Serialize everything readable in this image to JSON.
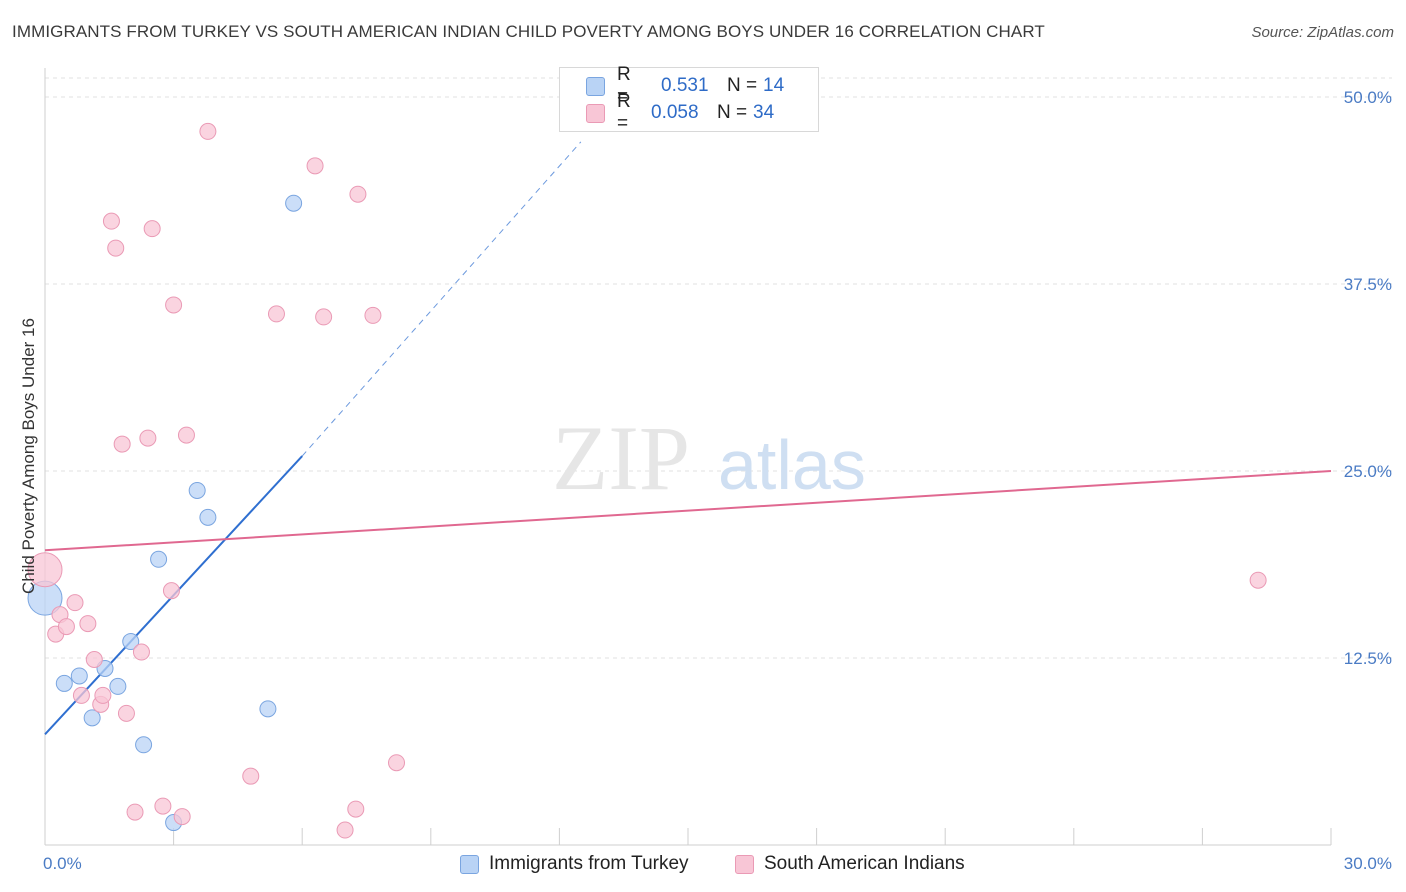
{
  "title": "IMMIGRANTS FROM TURKEY VS SOUTH AMERICAN INDIAN CHILD POVERTY AMONG BOYS UNDER 16 CORRELATION CHART",
  "source": "Source: ZipAtlas.com",
  "watermark": {
    "zip": "ZIP",
    "atlas": "atlas"
  },
  "legend": {
    "turkey": {
      "r_label": "R =",
      "r_value": "0.531",
      "n_label": "N =",
      "n_value": "14"
    },
    "sai": {
      "r_label": "R =",
      "r_value": "0.058",
      "n_label": "N =",
      "n_value": "34"
    }
  },
  "bottom_legend": {
    "turkey": "Immigrants from Turkey",
    "sai": "South American Indians"
  },
  "colors": {
    "turkey_fill": "#b9d3f5",
    "turkey_stroke": "#7aa5e0",
    "turkey_line": "#2f6fd0",
    "sai_fill": "#f8c6d6",
    "sai_stroke": "#ea9ab5",
    "sai_line": "#e06890",
    "tick_text": "#4a7bc4",
    "grid": "#e2e2e2"
  },
  "chart_data": {
    "type": "scatter",
    "title": "IMMIGRANTS FROM TURKEY VS SOUTH AMERICAN INDIAN CHILD POVERTY AMONG BOYS UNDER 16 CORRELATION CHART",
    "xlabel": "",
    "ylabel": "Child Poverty Among Boys Under 16",
    "xlim": [
      0,
      30
    ],
    "ylim": [
      0,
      50
    ],
    "x_tick_labels": [
      "0.0%",
      "30.0%"
    ],
    "y_ticks": [
      12.5,
      25.0,
      37.5,
      50.0
    ],
    "y_tick_labels": [
      "12.5%",
      "25.0%",
      "37.5%",
      "50.0%"
    ],
    "series": [
      {
        "name": "Immigrants from Turkey",
        "color_key": "turkey",
        "points": [
          {
            "x": 0.0,
            "y": 16.5,
            "big": true
          },
          {
            "x": 0.45,
            "y": 10.8
          },
          {
            "x": 0.8,
            "y": 11.3
          },
          {
            "x": 1.1,
            "y": 8.5
          },
          {
            "x": 1.4,
            "y": 11.8
          },
          {
            "x": 1.7,
            "y": 10.6
          },
          {
            "x": 2.0,
            "y": 13.6
          },
          {
            "x": 2.3,
            "y": 6.7
          },
          {
            "x": 2.65,
            "y": 19.1
          },
          {
            "x": 3.0,
            "y": 1.5
          },
          {
            "x": 3.55,
            "y": 23.7
          },
          {
            "x": 3.8,
            "y": 21.9
          },
          {
            "x": 5.2,
            "y": 9.1
          },
          {
            "x": 5.8,
            "y": 42.9
          }
        ],
        "trend": {
          "x1": 0.0,
          "y1": 7.4,
          "x2": 6.0,
          "y2": 26.0,
          "dash_x2": 12.5,
          "dash_y2": 47.0
        }
      },
      {
        "name": "South American Indians",
        "color_key": "sai",
        "points": [
          {
            "x": 0.0,
            "y": 18.4,
            "big": true
          },
          {
            "x": 0.25,
            "y": 14.1
          },
          {
            "x": 0.35,
            "y": 15.4
          },
          {
            "x": 0.5,
            "y": 14.6
          },
          {
            "x": 0.7,
            "y": 16.2
          },
          {
            "x": 0.85,
            "y": 10.0
          },
          {
            "x": 1.0,
            "y": 14.8
          },
          {
            "x": 1.15,
            "y": 12.4
          },
          {
            "x": 1.3,
            "y": 9.4
          },
          {
            "x": 1.35,
            "y": 10.0
          },
          {
            "x": 1.55,
            "y": 41.7
          },
          {
            "x": 1.65,
            "y": 39.9
          },
          {
            "x": 1.8,
            "y": 26.8
          },
          {
            "x": 1.9,
            "y": 8.8
          },
          {
            "x": 2.1,
            "y": 2.2
          },
          {
            "x": 2.25,
            "y": 12.9
          },
          {
            "x": 2.4,
            "y": 27.2
          },
          {
            "x": 2.5,
            "y": 41.2
          },
          {
            "x": 2.75,
            "y": 2.6
          },
          {
            "x": 2.95,
            "y": 17.0
          },
          {
            "x": 3.0,
            "y": 36.1
          },
          {
            "x": 3.2,
            "y": 1.9
          },
          {
            "x": 3.3,
            "y": 27.4
          },
          {
            "x": 3.8,
            "y": 47.7
          },
          {
            "x": 4.8,
            "y": 4.6
          },
          {
            "x": 5.4,
            "y": 35.5
          },
          {
            "x": 6.3,
            "y": 45.4
          },
          {
            "x": 6.5,
            "y": 35.3
          },
          {
            "x": 7.0,
            "y": 1.0
          },
          {
            "x": 7.25,
            "y": 2.4
          },
          {
            "x": 7.3,
            "y": 43.5
          },
          {
            "x": 7.65,
            "y": 35.4
          },
          {
            "x": 8.2,
            "y": 5.5
          },
          {
            "x": 28.3,
            "y": 17.7
          }
        ],
        "trend": {
          "x1": 0.0,
          "y1": 19.7,
          "x2": 30.0,
          "y2": 25.0
        }
      }
    ]
  }
}
